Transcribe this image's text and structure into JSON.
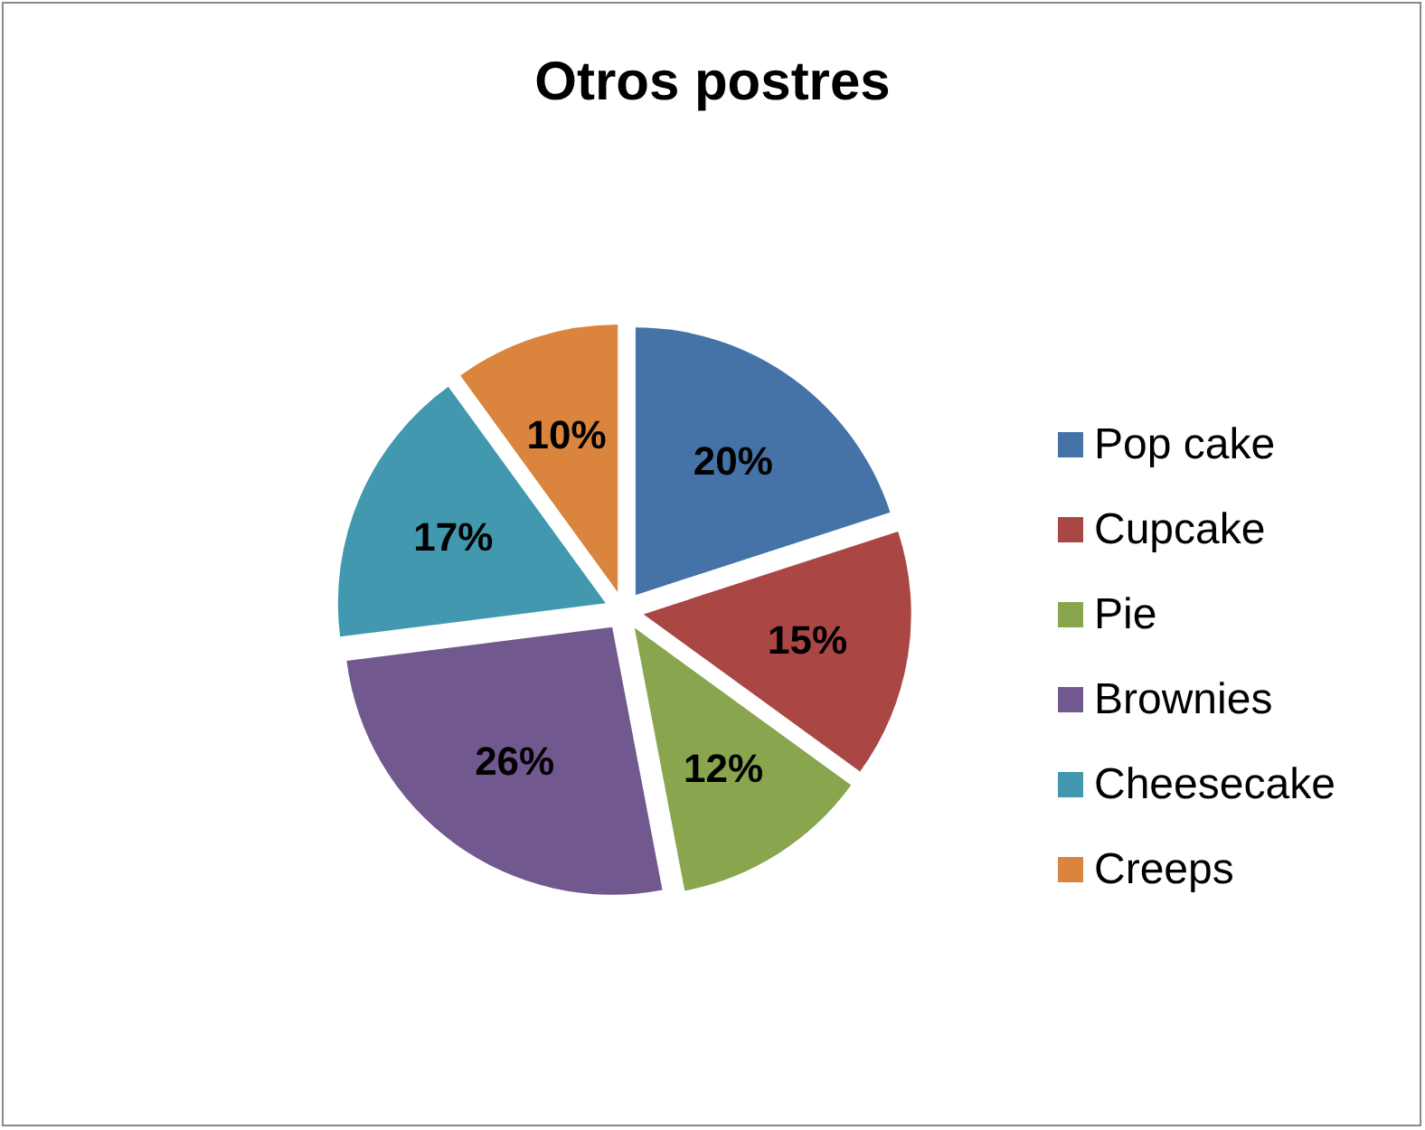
{
  "chart_data": {
    "type": "pie",
    "title": "Otros postres",
    "categories": [
      "Pop cake",
      "Cupcake",
      "Pie",
      "Brownies",
      "Cheesecake",
      "Creeps"
    ],
    "values": [
      20,
      15,
      12,
      26,
      17,
      10
    ],
    "colors": [
      "#4572a7",
      "#aa4643",
      "#89a54e",
      "#71588f",
      "#4198af",
      "#db843d"
    ],
    "value_labels": [
      "20%",
      "15%",
      "12%",
      "26%",
      "17%",
      "10%"
    ],
    "legend": "right"
  }
}
